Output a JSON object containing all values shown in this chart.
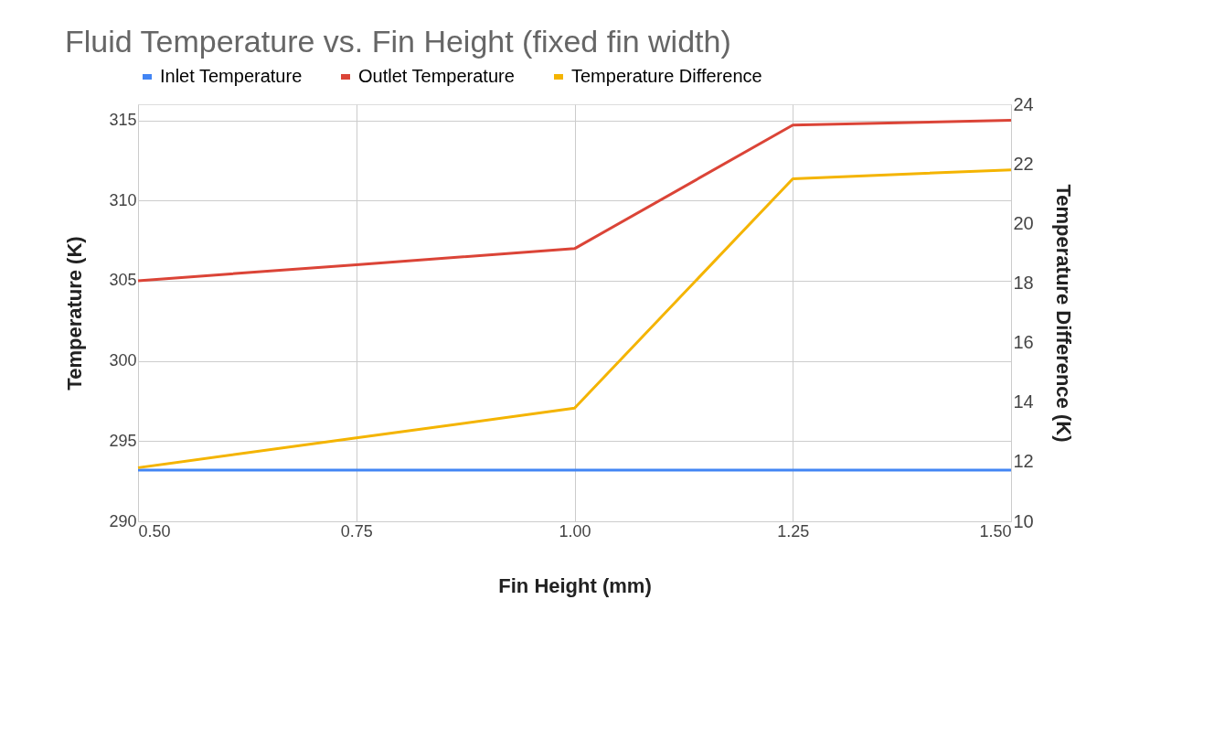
{
  "chart_data": {
    "type": "line",
    "title": "Fluid Temperature vs. Fin Height (fixed fin width)",
    "xlabel": "Fin Height (mm)",
    "ylabel": "Temperature (K)",
    "y2label": "Temperature Difference (K)",
    "x": [
      0.5,
      0.75,
      1.0,
      1.25,
      1.5
    ],
    "series": [
      {
        "name": "Inlet Temperature",
        "color": "#4285f4",
        "values": [
          293.2,
          293.2,
          293.2,
          293.2,
          293.2
        ]
      },
      {
        "name": "Outlet Temperature",
        "color": "#db4437",
        "values": [
          305,
          306,
          307,
          314.7,
          315
        ]
      },
      {
        "name": "Temperature Difference",
        "color": "#f4b400",
        "axis": "y2",
        "values": [
          11.8,
          12.8,
          13.8,
          21.5,
          21.8
        ]
      }
    ],
    "xlim": [
      0.5,
      1.5
    ],
    "xticks": [
      {
        "value": 0.5,
        "label": "0.50"
      },
      {
        "value": 0.75,
        "label": "0.75"
      },
      {
        "value": 1.0,
        "label": "1.00"
      },
      {
        "value": 1.25,
        "label": "1.25"
      },
      {
        "value": 1.5,
        "label": "1.50"
      }
    ],
    "ylim": [
      290,
      316
    ],
    "yticks": [
      290,
      295,
      300,
      305,
      310,
      315
    ],
    "y2lim": [
      10,
      24
    ],
    "y2ticks": [
      10,
      12,
      14,
      16,
      18,
      20,
      22,
      24
    ],
    "grid": true,
    "legend": "top",
    "marker": "none",
    "line_style": "solid"
  }
}
